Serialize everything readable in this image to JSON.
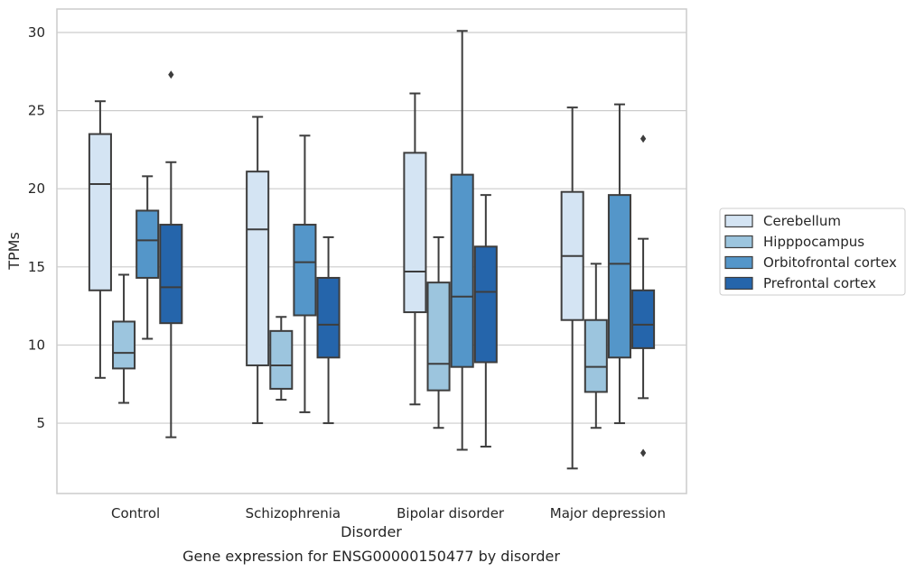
{
  "chart_data": {
    "type": "box",
    "caption": "Gene expression for ENSG00000150477 by disorder",
    "xlabel": "Disorder",
    "ylabel": "TPMs",
    "ylim": [
      0.5,
      31.5
    ],
    "yticks": [
      5,
      10,
      15,
      20,
      25,
      30
    ],
    "grid": "horizontal",
    "legend_position": "right",
    "categories": [
      "Control",
      "Schizophrenia",
      "Bipolar disorder",
      "Major depression"
    ],
    "series": [
      {
        "name": "Cerebellum",
        "color": "#d4e4f3",
        "boxes": [
          {
            "min": 7.9,
            "q1": 13.5,
            "median": 20.3,
            "q3": 23.5,
            "max": 25.6,
            "outliers": []
          },
          {
            "min": 5.0,
            "q1": 8.7,
            "median": 17.4,
            "q3": 21.1,
            "max": 24.6,
            "outliers": []
          },
          {
            "min": 6.2,
            "q1": 12.1,
            "median": 14.7,
            "q3": 22.3,
            "max": 26.1,
            "outliers": []
          },
          {
            "min": 2.1,
            "q1": 11.6,
            "median": 15.7,
            "q3": 19.8,
            "max": 25.2,
            "outliers": []
          }
        ]
      },
      {
        "name": "Hipppocampus",
        "color": "#9cc5de",
        "boxes": [
          {
            "min": 6.3,
            "q1": 8.5,
            "median": 9.5,
            "q3": 11.5,
            "max": 14.5,
            "outliers": []
          },
          {
            "min": 6.5,
            "q1": 7.2,
            "median": 8.7,
            "q3": 10.9,
            "max": 11.8,
            "outliers": []
          },
          {
            "min": 4.7,
            "q1": 7.1,
            "median": 8.8,
            "q3": 14.0,
            "max": 16.9,
            "outliers": []
          },
          {
            "min": 4.7,
            "q1": 7.0,
            "median": 8.6,
            "q3": 11.6,
            "max": 15.2,
            "outliers": []
          }
        ]
      },
      {
        "name": "Orbitofrontal cortex",
        "color": "#5496c9",
        "boxes": [
          {
            "min": 10.4,
            "q1": 14.3,
            "median": 16.7,
            "q3": 18.6,
            "max": 20.8,
            "outliers": []
          },
          {
            "min": 5.7,
            "q1": 11.9,
            "median": 15.3,
            "q3": 17.7,
            "max": 23.4,
            "outliers": []
          },
          {
            "min": 3.3,
            "q1": 8.6,
            "median": 13.1,
            "q3": 20.9,
            "max": 30.1,
            "outliers": []
          },
          {
            "min": 5.0,
            "q1": 9.2,
            "median": 15.2,
            "q3": 19.6,
            "max": 25.4,
            "outliers": []
          }
        ]
      },
      {
        "name": "Prefrontal cortex",
        "color": "#2565ab",
        "boxes": [
          {
            "min": 4.1,
            "q1": 11.4,
            "median": 13.7,
            "q3": 17.7,
            "max": 21.7,
            "outliers": [
              27.3
            ]
          },
          {
            "min": 5.0,
            "q1": 9.2,
            "median": 11.3,
            "q3": 14.3,
            "max": 16.9,
            "outliers": []
          },
          {
            "min": 3.5,
            "q1": 8.9,
            "median": 13.4,
            "q3": 16.3,
            "max": 19.6,
            "outliers": []
          },
          {
            "min": 6.6,
            "q1": 9.8,
            "median": 11.3,
            "q3": 13.5,
            "max": 16.8,
            "outliers": [
              23.2,
              3.1
            ]
          }
        ]
      }
    ]
  }
}
